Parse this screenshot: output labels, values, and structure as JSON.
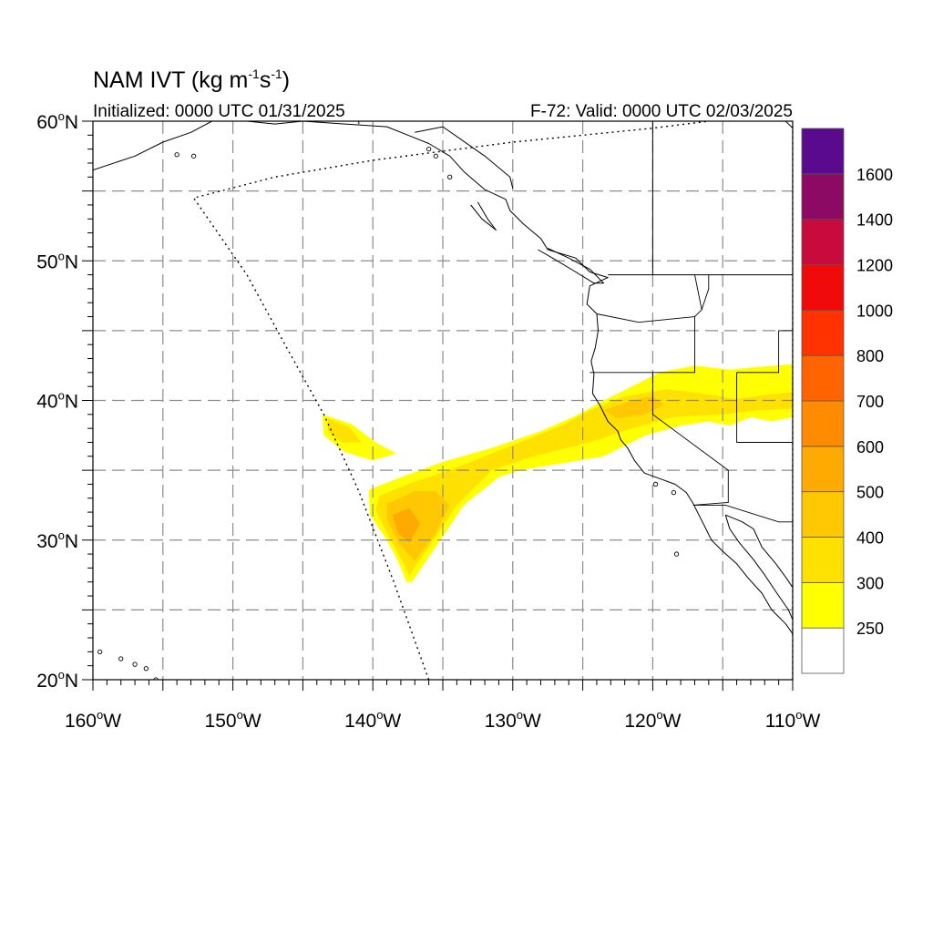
{
  "title": {
    "main": "NAM IVT (kg m",
    "exp1": "-1",
    "mid": "s",
    "exp2": "-1",
    "close": ")"
  },
  "subtitle_left": "Initialized: 0000 UTC 01/31/2025",
  "subtitle_right": "F-72: Valid: 0000 UTC 02/03/2025",
  "map": {
    "lon_range": [
      -160,
      -110
    ],
    "lat_range": [
      20,
      60
    ],
    "lon_ticks": [
      {
        "value": -160,
        "num": "160",
        "hem": "W"
      },
      {
        "value": -150,
        "num": "150",
        "hem": "W"
      },
      {
        "value": -140,
        "num": "140",
        "hem": "W"
      },
      {
        "value": -130,
        "num": "130",
        "hem": "W"
      },
      {
        "value": -120,
        "num": "120",
        "hem": "W"
      },
      {
        "value": -110,
        "num": "110",
        "hem": "W"
      }
    ],
    "lat_ticks": [
      {
        "value": 60,
        "num": "60",
        "hem": "N"
      },
      {
        "value": 50,
        "num": "50",
        "hem": "N"
      },
      {
        "value": 40,
        "num": "40",
        "hem": "N"
      },
      {
        "value": 30,
        "num": "30",
        "hem": "N"
      },
      {
        "value": 20,
        "num": "20",
        "hem": "N"
      }
    ],
    "grid_lons": [
      -155,
      -150,
      -145,
      -140,
      -135,
      -130,
      -125,
      -120,
      -115
    ],
    "grid_lats": [
      25,
      30,
      35,
      40,
      45,
      50,
      55
    ],
    "gridlines": "dashed"
  },
  "colorbar": {
    "levels": [
      250,
      300,
      400,
      500,
      600,
      700,
      800,
      1000,
      1200,
      1400,
      1600
    ],
    "colors": [
      "#ffffff",
      "#ffff00",
      "#ffe100",
      "#ffc800",
      "#ffaa00",
      "#ff8c00",
      "#ff6400",
      "#ff3200",
      "#f00a0a",
      "#c80a3c",
      "#8c0a64",
      "#5a0a8c"
    ]
  },
  "ivt_bands": [
    {
      "level": 250,
      "points": [
        [
          -143.6,
          39.0
        ],
        [
          -141.5,
          38.3
        ],
        [
          -139.8,
          37.0
        ],
        [
          -138.3,
          36.2
        ],
        [
          -140.0,
          35.7
        ],
        [
          -142.0,
          36.3
        ],
        [
          -143.5,
          37.5
        ]
      ]
    },
    {
      "level": 250,
      "points": [
        [
          -140.3,
          33.6
        ],
        [
          -138.0,
          34.5
        ],
        [
          -135.0,
          35.6
        ],
        [
          -131.5,
          36.6
        ],
        [
          -128.0,
          37.8
        ],
        [
          -125.5,
          38.9
        ],
        [
          -123.5,
          40.0
        ],
        [
          -121.5,
          41.0
        ],
        [
          -119.5,
          42.0
        ],
        [
          -117.0,
          42.5
        ],
        [
          -114.5,
          42.2
        ],
        [
          -112.5,
          42.4
        ],
        [
          -110.0,
          42.6
        ],
        [
          -110.0,
          38.8
        ],
        [
          -111.5,
          38.5
        ],
        [
          -113.0,
          38.8
        ],
        [
          -114.5,
          38.2
        ],
        [
          -116.0,
          38.5
        ],
        [
          -118.0,
          38.2
        ],
        [
          -120.5,
          37.5
        ],
        [
          -123.5,
          36.0
        ],
        [
          -126.5,
          35.5
        ],
        [
          -129.5,
          35.0
        ],
        [
          -131.0,
          34.5
        ],
        [
          -133.5,
          32.5
        ],
        [
          -135.5,
          29.5
        ],
        [
          -137.2,
          27.0
        ],
        [
          -137.6,
          27.0
        ],
        [
          -138.2,
          28.5
        ],
        [
          -139.0,
          30.0
        ],
        [
          -140.2,
          31.8
        ]
      ]
    },
    {
      "level": 300,
      "points": [
        [
          -143.2,
          38.7
        ],
        [
          -141.7,
          38.1
        ],
        [
          -140.8,
          37.0
        ],
        [
          -142.2,
          37.0
        ],
        [
          -143.2,
          37.8
        ]
      ]
    },
    {
      "level": 300,
      "points": [
        [
          -139.5,
          33.2
        ],
        [
          -137.0,
          34.2
        ],
        [
          -134.5,
          35.0
        ],
        [
          -132.0,
          36.0
        ],
        [
          -129.5,
          37.0
        ],
        [
          -126.5,
          38.2
        ],
        [
          -124.5,
          39.3
        ],
        [
          -122.0,
          40.3
        ],
        [
          -119.0,
          40.8
        ],
        [
          -116.5,
          40.5
        ],
        [
          -114.0,
          40.1
        ],
        [
          -112.0,
          40.4
        ],
        [
          -110.0,
          40.6
        ],
        [
          -110.0,
          39.4
        ],
        [
          -112.5,
          39.3
        ],
        [
          -115.0,
          39.0
        ],
        [
          -118.5,
          38.8
        ],
        [
          -121.5,
          38.0
        ],
        [
          -124.5,
          37.0
        ],
        [
          -128.5,
          36.0
        ],
        [
          -131.5,
          35.0
        ],
        [
          -134.0,
          32.5
        ],
        [
          -136.0,
          29.5
        ],
        [
          -137.4,
          27.5
        ],
        [
          -138.0,
          28.7
        ],
        [
          -139.0,
          30.5
        ],
        [
          -139.8,
          32.2
        ]
      ]
    },
    {
      "level": 400,
      "points": [
        [
          -139.0,
          32.6
        ],
        [
          -137.0,
          33.5
        ],
        [
          -135.5,
          33.5
        ],
        [
          -134.5,
          32.5
        ],
        [
          -135.5,
          30.5
        ],
        [
          -137.0,
          28.5
        ],
        [
          -138.2,
          29.8
        ],
        [
          -139.0,
          31.5
        ]
      ]
    },
    {
      "level": 400,
      "points": [
        [
          -123.5,
          39.3
        ],
        [
          -121.5,
          40.0
        ],
        [
          -120.0,
          40.3
        ],
        [
          -119.2,
          39.7
        ],
        [
          -120.5,
          39.0
        ],
        [
          -122.5,
          38.7
        ]
      ]
    },
    {
      "level": 500,
      "points": [
        [
          -138.6,
          31.8
        ],
        [
          -137.4,
          32.3
        ],
        [
          -136.6,
          31.2
        ],
        [
          -137.4,
          29.8
        ],
        [
          -138.2,
          30.5
        ]
      ]
    }
  ],
  "geo": {
    "coast": [
      [
        [
          -160,
          56.5
        ],
        [
          -157,
          57.5
        ],
        [
          -155,
          58.5
        ],
        [
          -153,
          59.2
        ],
        [
          -151.5,
          60.0
        ]
      ],
      [
        [
          -149,
          60
        ],
        [
          -147,
          59.8
        ],
        [
          -145,
          60
        ],
        [
          -142,
          59.8
        ],
        [
          -139,
          59.6
        ],
        [
          -137.5,
          59.0
        ],
        [
          -136,
          58.4
        ],
        [
          -134.5,
          57.5
        ],
        [
          -133.5,
          56.4
        ],
        [
          -132,
          55.1
        ],
        [
          -130.5,
          54.4
        ],
        [
          -130.2,
          53.6
        ],
        [
          -129.2,
          52.6
        ],
        [
          -128.0,
          51.6
        ],
        [
          -127.5,
          50.8
        ],
        [
          -125.5,
          50.2
        ],
        [
          -124.5,
          49.2
        ],
        [
          -123.2,
          48.8
        ],
        [
          -124.5,
          48.2
        ],
        [
          -124.7,
          46.9
        ],
        [
          -124.0,
          46.2
        ],
        [
          -123.9,
          45.0
        ],
        [
          -124.1,
          43.8
        ],
        [
          -124.4,
          42.8
        ],
        [
          -124.2,
          41.9
        ],
        [
          -124.3,
          40.5
        ],
        [
          -123.8,
          39.7
        ],
        [
          -123.2,
          38.5
        ],
        [
          -122.5,
          37.8
        ],
        [
          -122.3,
          37.2
        ],
        [
          -121.8,
          36.6
        ],
        [
          -121.3,
          35.7
        ],
        [
          -120.6,
          34.8
        ],
        [
          -119.5,
          34.4
        ],
        [
          -118.4,
          34.0
        ],
        [
          -117.6,
          33.4
        ],
        [
          -117.1,
          32.6
        ],
        [
          -116.7,
          31.8
        ],
        [
          -116.2,
          30.8
        ],
        [
          -115.8,
          30.0
        ],
        [
          -115.0,
          29.2
        ],
        [
          -114.0,
          28.3
        ],
        [
          -113.2,
          27.3
        ],
        [
          -112.2,
          26.2
        ],
        [
          -111.5,
          25.0
        ],
        [
          -110.5,
          24.0
        ],
        [
          -109.8,
          23.0
        ]
      ],
      [
        [
          -114.8,
          31.8
        ],
        [
          -114.5,
          30.8
        ],
        [
          -113.8,
          29.8
        ],
        [
          -112.8,
          28.6
        ],
        [
          -112.0,
          27.5
        ],
        [
          -111.2,
          26.3
        ],
        [
          -110.3,
          25.0
        ],
        [
          -110.0,
          24.3
        ]
      ],
      [
        [
          -114.8,
          31.8
        ],
        [
          -113.6,
          31.3
        ],
        [
          -112.8,
          30.8
        ],
        [
          -112.2,
          29.5
        ],
        [
          -111.2,
          28.3
        ],
        [
          -110.4,
          27.2
        ],
        [
          -110.0,
          26.6
        ]
      ],
      [
        [
          -128.2,
          50.8
        ],
        [
          -127.0,
          50.1
        ],
        [
          -125.5,
          49.2
        ],
        [
          -124.2,
          48.4
        ],
        [
          -123.5,
          48.4
        ],
        [
          -124.5,
          49.4
        ],
        [
          -126.0,
          50.2
        ],
        [
          -127.5,
          50.9
        ]
      ],
      [
        [
          -132.5,
          54.2
        ],
        [
          -131.8,
          53.0
        ],
        [
          -131.2,
          52.2
        ],
        [
          -132.2,
          53.0
        ],
        [
          -133.0,
          54.0
        ]
      ],
      [
        [
          -110.5,
          60
        ],
        [
          -110.0,
          59.5
        ]
      ]
    ],
    "islands": [
      [
        -155.5,
        20.0
      ],
      [
        -156.2,
        20.8
      ],
      [
        -157.0,
        21.1
      ],
      [
        -158.0,
        21.5
      ],
      [
        -159.5,
        22.0
      ],
      [
        -152.8,
        57.5
      ],
      [
        -154.0,
        57.6
      ],
      [
        -135.5,
        57.5
      ],
      [
        -134.5,
        56.0
      ],
      [
        -136.0,
        58.0
      ],
      [
        -118.5,
        33.4
      ],
      [
        -119.8,
        34.0
      ],
      [
        -118.3,
        29.0
      ]
    ],
    "borders": [
      [
        [
          -141,
          60
        ],
        [
          -141,
          59.8
        ]
      ],
      [
        [
          -123.2,
          49
        ],
        [
          -110,
          49
        ]
      ],
      [
        [
          -110,
          55
        ],
        [
          -110,
          60
        ]
      ],
      [
        [
          -137,
          59.2
        ],
        [
          -135,
          59.6
        ],
        [
          -132,
          57.5
        ],
        [
          -130.2,
          56.0
        ],
        [
          -130,
          55.2
        ]
      ],
      [
        [
          -120,
          49
        ],
        [
          -120,
          60
        ]
      ]
    ],
    "states": [
      [
        [
          -124.5,
          42.0
        ],
        [
          -117.0,
          42.0
        ],
        [
          -117.0,
          46.0
        ],
        [
          -116.5,
          46.5
        ],
        [
          -117.0,
          49.0
        ]
      ],
      [
        [
          -124.0,
          46.2
        ],
        [
          -121.0,
          45.6
        ],
        [
          -117.0,
          46.0
        ]
      ],
      [
        [
          -120.0,
          42.0
        ],
        [
          -120.0,
          39.0
        ],
        [
          -114.6,
          35.0
        ],
        [
          -114.6,
          32.7
        ],
        [
          -117.1,
          32.5
        ]
      ],
      [
        [
          -114.0,
          42.0
        ],
        [
          -114.0,
          37.0
        ],
        [
          -110,
          37
        ]
      ],
      [
        [
          -114.0,
          42.0
        ],
        [
          -111.0,
          42.0
        ],
        [
          -111.0,
          45.0
        ],
        [
          -110,
          45
        ]
      ],
      [
        [
          -117.1,
          32.5
        ],
        [
          -114.8,
          32.5
        ],
        [
          -111.0,
          31.3
        ],
        [
          -110,
          31.3
        ]
      ],
      [
        [
          -116.0,
          49.0
        ],
        [
          -116.0,
          48.0
        ],
        [
          -116.5,
          46.5
        ]
      ]
    ],
    "dotted_boundary": [
      [
        -136.0,
        20.0
      ],
      [
        -138.5,
        27.0
      ],
      [
        -141.0,
        33.5
      ],
      [
        -143.5,
        39.0
      ],
      [
        -146.0,
        43.5
      ],
      [
        -149.0,
        49.0
      ],
      [
        -152.8,
        54.5
      ],
      [
        -147.0,
        56.0
      ],
      [
        -140.0,
        57.2
      ],
      [
        -130.0,
        58.5
      ],
      [
        -120.0,
        59.5
      ],
      [
        -116.0,
        60.0
      ]
    ],
    "right_boundary": [
      [
        -110.0,
        20.0
      ],
      [
        -110.0,
        60.0
      ]
    ]
  }
}
